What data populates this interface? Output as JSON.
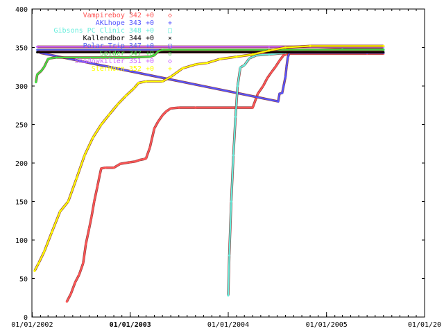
{
  "chart_data": {
    "type": "line",
    "title": "",
    "xlabel": "",
    "ylabel": "",
    "ylim": [
      0,
      400
    ],
    "xlim": [
      "2001-12-31",
      "2006-01-01"
    ],
    "grid": false,
    "legend_position": "top-center",
    "y_ticks": [
      "0",
      "50",
      "100",
      "150",
      "200",
      "250",
      "300",
      "350",
      "400"
    ],
    "x_ticks": [
      {
        "label": "01/01/2002",
        "date": "2002-01-01",
        "bold": false
      },
      {
        "label": "01/01/2003",
        "date": "2003-01-01",
        "bold": true
      },
      {
        "label": "01/01/2004",
        "date": "2004-01-01",
        "bold": false
      },
      {
        "label": "01/01/2005",
        "date": "2005-01-01",
        "bold": false
      },
      {
        "label": "01/01/20",
        "date": "2006-01-01",
        "bold": false
      }
    ],
    "series": [
      {
        "name": "Vampireboy 342 +0",
        "marker": "◇",
        "color": "#ff5555",
        "points": [
          [
            "2002-05-10",
            20
          ],
          [
            "2002-05-25",
            30
          ],
          [
            "2002-06-10",
            45
          ],
          [
            "2002-06-25",
            55
          ],
          [
            "2002-07-10",
            70
          ],
          [
            "2002-07-20",
            95
          ],
          [
            "2002-08-01",
            115
          ],
          [
            "2002-08-10",
            130
          ],
          [
            "2002-08-20",
            150
          ],
          [
            "2002-09-01",
            170
          ],
          [
            "2002-09-10",
            185
          ],
          [
            "2002-09-15",
            193
          ],
          [
            "2002-10-01",
            194
          ],
          [
            "2002-11-01",
            194
          ],
          [
            "2002-11-25",
            199
          ],
          [
            "2002-12-31",
            201
          ],
          [
            "2003-01-20",
            202
          ],
          [
            "2003-02-05",
            204
          ],
          [
            "2003-02-20",
            205
          ],
          [
            "2003-03-01",
            206
          ],
          [
            "2003-03-15",
            220
          ],
          [
            "2003-04-01",
            245
          ],
          [
            "2003-04-15",
            254
          ],
          [
            "2003-05-01",
            262
          ],
          [
            "2003-05-15",
            267
          ],
          [
            "2003-06-01",
            271
          ],
          [
            "2003-07-01",
            272
          ],
          [
            "2003-09-01",
            272
          ],
          [
            "2004-02-01",
            272
          ],
          [
            "2004-04-01",
            272
          ],
          [
            "2004-04-20",
            290
          ],
          [
            "2004-05-10",
            300
          ],
          [
            "2004-05-25",
            310
          ],
          [
            "2004-06-10",
            318
          ],
          [
            "2004-06-25",
            325
          ],
          [
            "2004-07-10",
            333
          ],
          [
            "2004-07-25",
            340
          ],
          [
            "2004-08-10",
            342
          ],
          [
            "2005-06-01",
            342
          ],
          [
            "2005-08-01",
            342
          ]
        ]
      },
      {
        "name": "AKLhope 343 +0",
        "marker": "+",
        "color": "#5555ff",
        "points": [
          [
            "2002-01-25",
            345
          ],
          [
            "2002-02-01",
            343
          ],
          [
            "2004-07-05",
            280
          ],
          [
            "2004-07-10",
            290
          ],
          [
            "2004-07-20",
            291
          ],
          [
            "2004-07-25",
            300
          ],
          [
            "2004-08-01",
            312
          ],
          [
            "2004-08-05",
            325
          ],
          [
            "2004-08-10",
            337
          ],
          [
            "2004-08-15",
            343
          ],
          [
            "2005-06-01",
            343
          ],
          [
            "2005-08-01",
            343
          ]
        ]
      },
      {
        "name": "Gibsons PC Clinic 348 +0",
        "marker": "□",
        "color": "#66eedd",
        "points": [
          [
            "2004-01-01",
            28
          ],
          [
            "2004-01-05",
            80
          ],
          [
            "2004-01-12",
            150
          ],
          [
            "2004-01-20",
            210
          ],
          [
            "2004-01-28",
            260
          ],
          [
            "2004-02-05",
            300
          ],
          [
            "2004-02-15",
            324
          ],
          [
            "2004-03-01",
            327
          ],
          [
            "2004-03-20",
            336
          ],
          [
            "2004-04-15",
            340
          ],
          [
            "2004-06-01",
            341
          ],
          [
            "2004-08-01",
            343
          ],
          [
            "2004-10-01",
            346
          ],
          [
            "2004-12-01",
            347
          ],
          [
            "2005-03-01",
            348
          ],
          [
            "2005-08-01",
            348
          ]
        ]
      },
      {
        "name": "Kallendbor 344 +0",
        "marker": "×",
        "color": "#000000",
        "points": [
          [
            "2002-01-20",
            344
          ],
          [
            "2003-06-01",
            344
          ],
          [
            "2004-06-01",
            344
          ],
          [
            "2005-08-01",
            344
          ]
        ]
      },
      {
        "name": "Polar Trip 347 +0",
        "marker": "▢",
        "color": "#5566ee",
        "points": [
          [
            "2002-01-20",
            347
          ],
          [
            "2003-06-01",
            347
          ],
          [
            "2004-06-01",
            347
          ],
          [
            "2005-08-01",
            347
          ]
        ]
      },
      {
        "name": "Spider 347 +0",
        "marker": "▫",
        "color": "#44dd44",
        "points": [
          [
            "2002-01-15",
            305
          ],
          [
            "2002-01-20",
            315
          ],
          [
            "2002-02-05",
            320
          ],
          [
            "2002-02-15",
            325
          ],
          [
            "2002-03-01",
            335
          ],
          [
            "2002-03-10",
            336
          ],
          [
            "2002-04-01",
            337
          ],
          [
            "2003-01-01",
            337
          ],
          [
            "2003-03-15",
            338
          ],
          [
            "2003-04-01",
            340
          ],
          [
            "2003-04-15",
            345
          ],
          [
            "2003-05-01",
            347
          ],
          [
            "2004-06-01",
            347
          ],
          [
            "2005-08-01",
            347
          ]
        ]
      },
      {
        "name": "Shadowkiller 351 +0",
        "marker": "◇",
        "color": "#cc66ff",
        "points": [
          [
            "2002-01-20",
            351
          ],
          [
            "2003-06-01",
            351
          ],
          [
            "2004-06-01",
            351
          ],
          [
            "2005-08-01",
            351
          ]
        ]
      },
      {
        "name": "SterHorn 352 +0",
        "marker": "+",
        "color": "#ffff00",
        "points": [
          [
            "2002-01-10",
            60
          ],
          [
            "2002-01-25",
            70
          ],
          [
            "2002-02-15",
            85
          ],
          [
            "2002-03-15",
            110
          ],
          [
            "2002-04-15",
            137
          ],
          [
            "2002-05-15",
            150
          ],
          [
            "2002-06-15",
            180
          ],
          [
            "2002-07-15",
            210
          ],
          [
            "2002-08-15",
            233
          ],
          [
            "2002-09-15",
            250
          ],
          [
            "2002-10-15",
            263
          ],
          [
            "2002-11-15",
            276
          ],
          [
            "2002-12-15",
            287
          ],
          [
            "2003-01-15",
            297
          ],
          [
            "2003-02-01",
            304
          ],
          [
            "2003-03-01",
            306
          ],
          [
            "2003-05-01",
            306
          ],
          [
            "2003-06-01",
            312
          ],
          [
            "2003-07-15",
            323
          ],
          [
            "2003-09-01",
            328
          ],
          [
            "2003-10-15",
            330
          ],
          [
            "2003-12-01",
            335
          ],
          [
            "2004-02-01",
            338
          ],
          [
            "2004-04-01",
            341
          ],
          [
            "2004-06-01",
            346
          ],
          [
            "2004-08-01",
            350
          ],
          [
            "2004-11-01",
            352
          ],
          [
            "2005-08-01",
            352
          ]
        ]
      }
    ]
  }
}
